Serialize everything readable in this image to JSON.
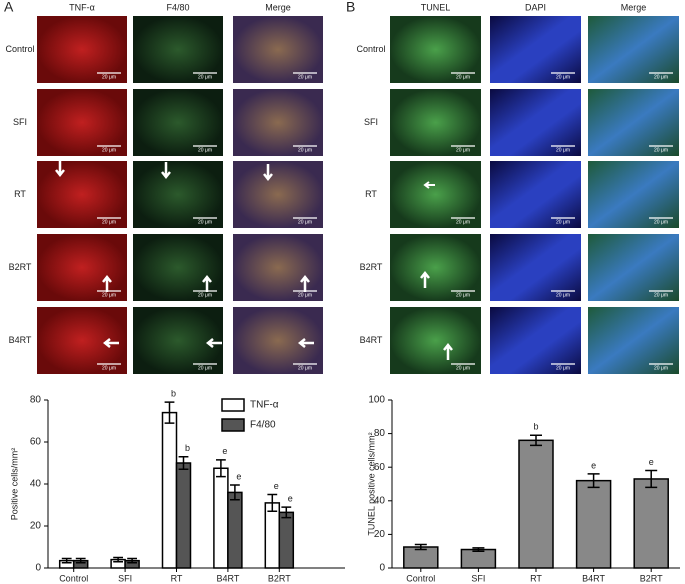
{
  "panel_a": {
    "label": "A",
    "columns": [
      "TNF-α",
      "F4/80",
      "Merge"
    ],
    "rows": [
      "Control",
      "SFI",
      "RT",
      "B2RT",
      "B4RT"
    ],
    "scale_bar": "20 μm"
  },
  "panel_b": {
    "label": "B",
    "columns": [
      "TUNEL",
      "DAPI",
      "Merge"
    ],
    "rows": [
      "Control",
      "SFI",
      "RT",
      "B2RT",
      "B4RT"
    ],
    "scale_bar": "20 μm"
  },
  "chart_data": [
    {
      "type": "bar",
      "ylabel": "Positive cells/mm²",
      "categories": [
        "Control",
        "SFI",
        "RT",
        "B4RT",
        "B2RT"
      ],
      "series": [
        {
          "name": "TNF-α",
          "color": "#ffffff",
          "values": [
            3.5,
            4,
            74,
            47.5,
            31
          ],
          "errors": [
            1,
            1,
            5,
            4,
            4
          ],
          "annotations": [
            null,
            null,
            "b",
            "e",
            "e"
          ]
        },
        {
          "name": "F4/80",
          "color": "#555555",
          "values": [
            3.5,
            3.5,
            50,
            36,
            26.5
          ],
          "errors": [
            1,
            1,
            3,
            3.5,
            2.5
          ],
          "annotations": [
            null,
            null,
            "b",
            "e",
            "e"
          ]
        }
      ],
      "ylim": [
        0,
        80
      ],
      "yticks": [
        0,
        20,
        40,
        60,
        80
      ],
      "legend": "upper right"
    },
    {
      "type": "bar",
      "ylabel": "TUNEL positive cells/mm²",
      "categories": [
        "Control",
        "SFI",
        "RT",
        "B4RT",
        "B2RT"
      ],
      "series": [
        {
          "color": "#888888",
          "values": [
            12.5,
            11,
            76,
            52,
            53
          ],
          "errors": [
            1.5,
            1,
            3,
            4,
            5
          ],
          "annotations": [
            null,
            null,
            "b",
            "e",
            "e"
          ]
        }
      ],
      "ylim": [
        0,
        100
      ],
      "yticks": [
        0,
        20,
        40,
        60,
        80,
        100
      ]
    }
  ]
}
